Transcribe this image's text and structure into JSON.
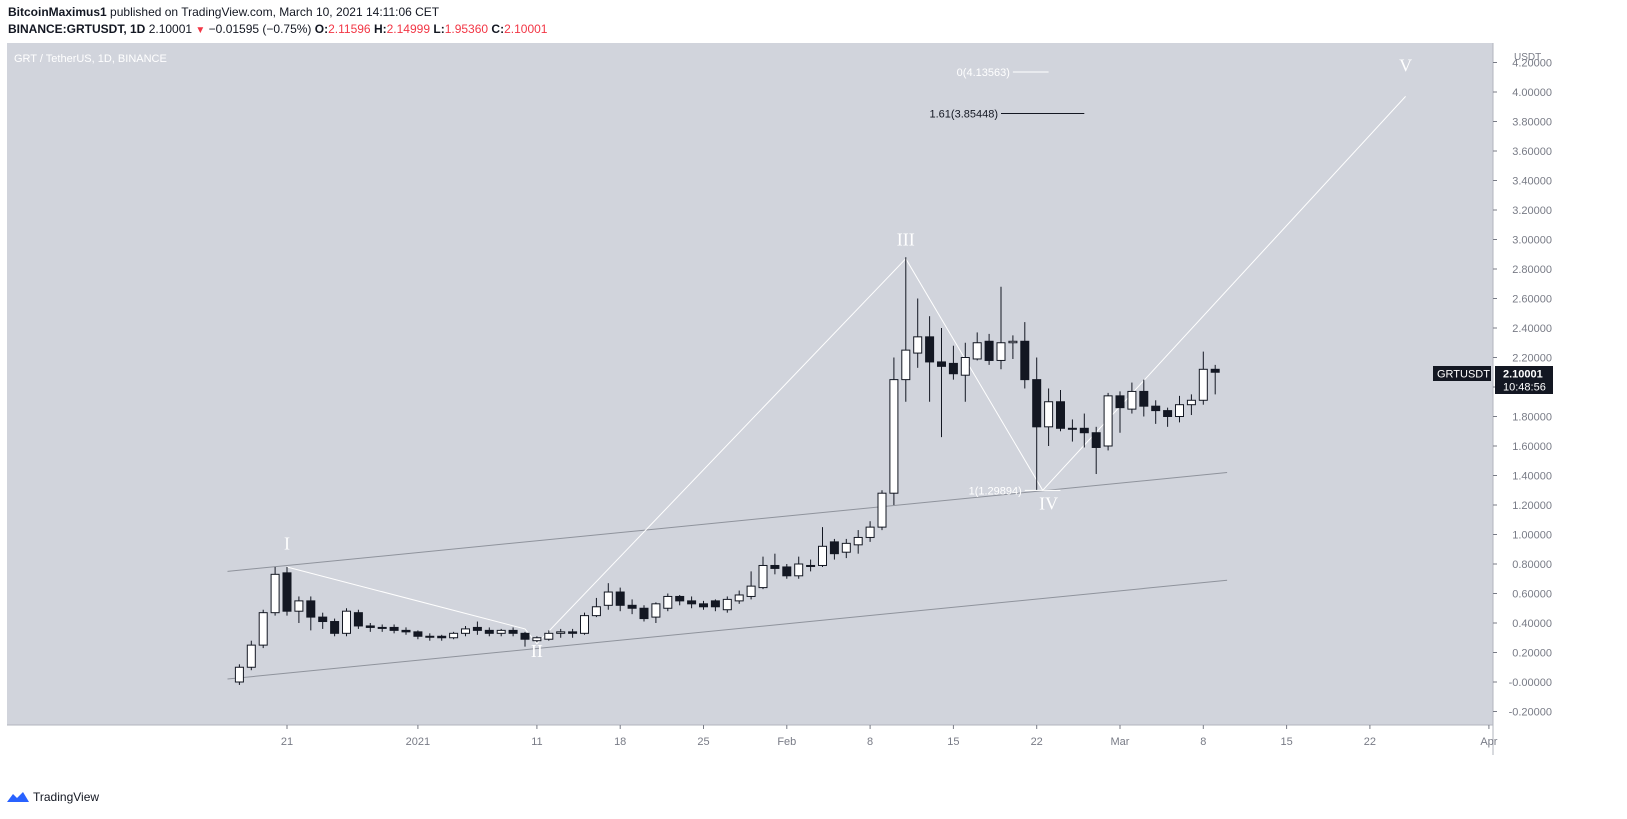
{
  "header": {
    "author": "BitcoinMaximus1",
    "published_text": "published on TradingView.com, March 10, 2021 14:11:06 CET",
    "symbol_line": "BINANCE:GRTUSDT, 1D",
    "last": "2.10001",
    "change_arrow": "▼",
    "change": "−0.01595 (−0.75%)",
    "o_label": "O:",
    "o": "2.11596",
    "h_label": "H:",
    "h": "2.14999",
    "l_label": "L:",
    "l": "1.95360",
    "c_label": "C:",
    "c": "2.10001"
  },
  "footer": {
    "brand": "TradingView"
  },
  "chart_data": {
    "type": "candlestick",
    "title": "GRT / TetherUS, 1D, BINANCE",
    "currency": "USDT",
    "ylim": [
      -0.28,
      4.48
    ],
    "y_ticks": [
      "4.20000",
      "4.00000",
      "3.80000",
      "3.60000",
      "3.40000",
      "3.20000",
      "3.00000",
      "2.80000",
      "2.60000",
      "2.40000",
      "2.20000",
      "2.00000",
      "1.80000",
      "1.60000",
      "1.40000",
      "1.20000",
      "1.00000",
      "0.80000",
      "0.60000",
      "0.40000",
      "0.20000",
      "-0.00000",
      "-0.20000"
    ],
    "x_ticks": [
      {
        "label": "21",
        "day": 21
      },
      {
        "label": "2021",
        "day": 32
      },
      {
        "label": "11",
        "day": 42
      },
      {
        "label": "18",
        "day": 49
      },
      {
        "label": "25",
        "day": 56
      },
      {
        "label": "Feb",
        "day": 63
      },
      {
        "label": "8",
        "day": 70
      },
      {
        "label": "15",
        "day": 77
      },
      {
        "label": "22",
        "day": 84
      },
      {
        "label": "Mar",
        "day": 91
      },
      {
        "label": "8",
        "day": 98
      },
      {
        "label": "15",
        "day": 105
      },
      {
        "label": "22",
        "day": 112
      },
      {
        "label": "Apr",
        "day": 122
      }
    ],
    "first_day": 17,
    "candles": [
      [
        0.0,
        0.1,
        0.12,
        -0.02
      ],
      [
        0.1,
        0.25,
        0.28,
        0.08
      ],
      [
        0.25,
        0.47,
        0.49,
        0.23
      ],
      [
        0.47,
        0.73,
        0.78,
        0.45
      ],
      [
        0.74,
        0.48,
        0.78,
        0.45
      ],
      [
        0.48,
        0.55,
        0.58,
        0.4
      ],
      [
        0.55,
        0.44,
        0.58,
        0.35
      ],
      [
        0.44,
        0.41,
        0.47,
        0.36
      ],
      [
        0.41,
        0.33,
        0.43,
        0.31
      ],
      [
        0.33,
        0.48,
        0.5,
        0.31
      ],
      [
        0.47,
        0.38,
        0.49,
        0.36
      ],
      [
        0.38,
        0.37,
        0.4,
        0.34
      ],
      [
        0.37,
        0.37,
        0.39,
        0.34
      ],
      [
        0.37,
        0.35,
        0.39,
        0.33
      ],
      [
        0.35,
        0.34,
        0.37,
        0.32
      ],
      [
        0.34,
        0.31,
        0.35,
        0.29
      ],
      [
        0.31,
        0.31,
        0.33,
        0.28
      ],
      [
        0.31,
        0.3,
        0.32,
        0.28
      ],
      [
        0.3,
        0.33,
        0.34,
        0.29
      ],
      [
        0.33,
        0.36,
        0.38,
        0.31
      ],
      [
        0.37,
        0.35,
        0.41,
        0.32
      ],
      [
        0.35,
        0.33,
        0.37,
        0.31
      ],
      [
        0.33,
        0.35,
        0.36,
        0.31
      ],
      [
        0.35,
        0.33,
        0.37,
        0.31
      ],
      [
        0.33,
        0.29,
        0.34,
        0.24
      ],
      [
        0.28,
        0.3,
        0.31,
        0.27
      ],
      [
        0.29,
        0.33,
        0.35,
        0.28
      ],
      [
        0.33,
        0.34,
        0.36,
        0.3
      ],
      [
        0.34,
        0.33,
        0.36,
        0.3
      ],
      [
        0.33,
        0.45,
        0.47,
        0.32
      ],
      [
        0.45,
        0.51,
        0.57,
        0.44
      ],
      [
        0.52,
        0.61,
        0.67,
        0.49
      ],
      [
        0.61,
        0.52,
        0.64,
        0.48
      ],
      [
        0.52,
        0.5,
        0.56,
        0.46
      ],
      [
        0.5,
        0.43,
        0.52,
        0.41
      ],
      [
        0.44,
        0.53,
        0.54,
        0.4
      ],
      [
        0.5,
        0.58,
        0.6,
        0.48
      ],
      [
        0.58,
        0.55,
        0.59,
        0.52
      ],
      [
        0.55,
        0.53,
        0.58,
        0.5
      ],
      [
        0.53,
        0.51,
        0.55,
        0.49
      ],
      [
        0.55,
        0.51,
        0.56,
        0.48
      ],
      [
        0.49,
        0.56,
        0.58,
        0.47
      ],
      [
        0.55,
        0.59,
        0.62,
        0.53
      ],
      [
        0.58,
        0.65,
        0.75,
        0.56
      ],
      [
        0.64,
        0.79,
        0.85,
        0.63
      ],
      [
        0.79,
        0.77,
        0.87,
        0.73
      ],
      [
        0.78,
        0.72,
        0.8,
        0.7
      ],
      [
        0.72,
        0.8,
        0.85,
        0.7
      ],
      [
        0.79,
        0.79,
        0.83,
        0.75
      ],
      [
        0.79,
        0.92,
        1.05,
        0.78
      ],
      [
        0.95,
        0.87,
        0.97,
        0.83
      ],
      [
        0.88,
        0.94,
        0.97,
        0.84
      ],
      [
        0.93,
        0.98,
        1.03,
        0.87
      ],
      [
        0.98,
        1.05,
        1.09,
        0.95
      ],
      [
        1.05,
        1.28,
        1.3,
        1.03
      ],
      [
        1.28,
        2.05,
        2.2,
        1.2
      ],
      [
        2.05,
        2.25,
        2.88,
        1.9
      ],
      [
        2.23,
        2.34,
        2.6,
        2.13
      ],
      [
        2.34,
        2.17,
        2.48,
        1.9
      ],
      [
        2.17,
        2.14,
        2.4,
        1.66
      ],
      [
        2.16,
        2.09,
        2.28,
        2.05
      ],
      [
        2.08,
        2.2,
        2.3,
        1.9
      ],
      [
        2.19,
        2.3,
        2.37,
        2.18
      ],
      [
        2.31,
        2.18,
        2.36,
        2.15
      ],
      [
        2.18,
        2.3,
        2.68,
        2.12
      ],
      [
        2.3,
        2.31,
        2.35,
        2.19
      ],
      [
        2.31,
        2.05,
        2.44,
        1.99
      ],
      [
        2.05,
        1.73,
        2.2,
        1.3
      ],
      [
        1.73,
        1.9,
        1.99,
        1.6
      ],
      [
        1.9,
        1.72,
        1.98,
        1.7
      ],
      [
        1.72,
        1.72,
        1.78,
        1.63
      ],
      [
        1.72,
        1.69,
        1.82,
        1.59
      ],
      [
        1.69,
        1.59,
        1.73,
        1.41
      ],
      [
        1.6,
        1.94,
        1.96,
        1.57
      ],
      [
        1.94,
        1.86,
        1.97,
        1.69
      ],
      [
        1.85,
        1.97,
        2.03,
        1.82
      ],
      [
        1.97,
        1.87,
        2.05,
        1.8
      ],
      [
        1.87,
        1.84,
        1.91,
        1.75
      ],
      [
        1.84,
        1.8,
        1.86,
        1.73
      ],
      [
        1.8,
        1.88,
        1.94,
        1.76
      ],
      [
        1.88,
        1.91,
        1.95,
        1.81
      ],
      [
        1.91,
        2.12,
        2.24,
        1.88
      ],
      [
        2.12,
        2.1,
        2.15,
        1.95
      ]
    ],
    "last_price_label": "GRTUSDT",
    "last_price_value": "2.10001",
    "countdown": "10:48:56",
    "wave_labels": [
      {
        "label": "I",
        "day": 21,
        "price": 0.9
      },
      {
        "label": "II",
        "day": 42,
        "price": 0.17
      },
      {
        "label": "III",
        "day": 73,
        "price": 2.96
      },
      {
        "label": "IV",
        "day": 85,
        "price": 1.17
      },
      {
        "label": "V",
        "day": 115,
        "price": 4.14
      }
    ],
    "wave_path": [
      {
        "day": 21,
        "price": 0.78
      },
      {
        "day": 41,
        "price": 0.36
      },
      {
        "day": 42,
        "price": 0.26
      },
      {
        "day": 73,
        "price": 2.87
      },
      {
        "day": 84.5,
        "price": 1.3
      },
      {
        "day": 115,
        "price": 3.97
      }
    ],
    "channel_upper": {
      "from": {
        "day": 16,
        "price": 0.75
      },
      "to": {
        "day": 100,
        "price": 1.42
      }
    },
    "channel_lower": {
      "from": {
        "day": 16,
        "price": 0.02
      },
      "to": {
        "day": 100,
        "price": 0.69
      }
    },
    "fib_levels": [
      {
        "label": "0(4.13563)",
        "price": 4.13563,
        "from_day": 82,
        "to_day": 85
      },
      {
        "label": "1.61(3.85448)",
        "price": 3.85448,
        "from_day": 81,
        "to_day": 88
      },
      {
        "label": "1(1.29894)",
        "price": 1.29894,
        "from_day": 83,
        "to_day": 86
      }
    ]
  }
}
